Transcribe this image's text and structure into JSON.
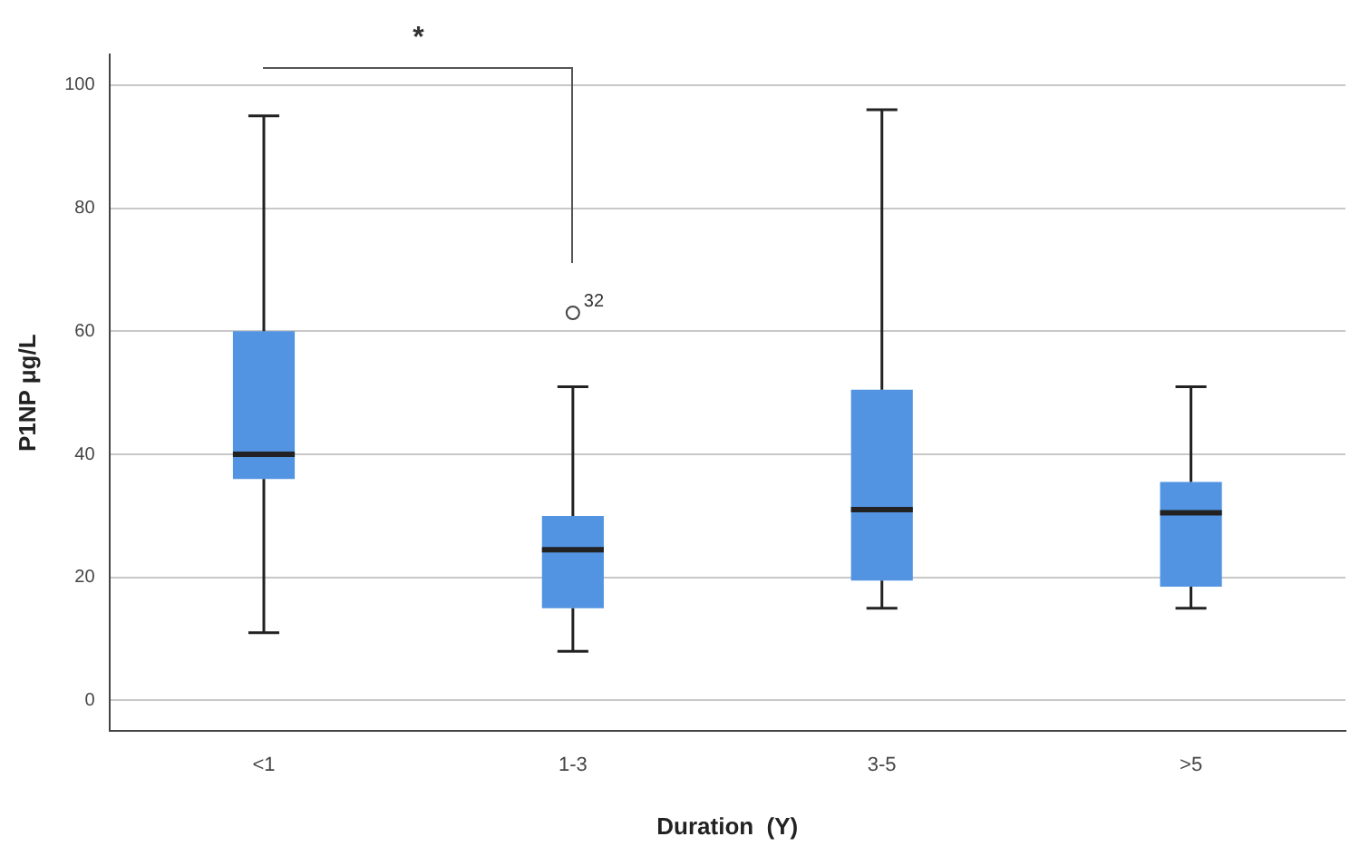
{
  "chart_data": {
    "type": "box",
    "xlabel": "Duration  (Y)",
    "ylabel": "P1NP μg/L",
    "categories": [
      "<1",
      "1-3",
      "3-5",
      ">5"
    ],
    "color": "#5294e2",
    "boxes": [
      {
        "low": 11,
        "q1": 36,
        "median": 40,
        "q3": 60,
        "high": 95
      },
      {
        "low": 8,
        "q1": 15,
        "median": 24.5,
        "q3": 30,
        "high": 51,
        "outliers": [
          63
        ]
      },
      {
        "low": 15,
        "q1": 19.5,
        "median": 31,
        "q3": 50.5,
        "high": 96
      },
      {
        "low": 15,
        "q1": 18.5,
        "median": 30.5,
        "q3": 35.5,
        "high": 51
      }
    ],
    "ylim": [
      -5,
      105
    ],
    "yticks": [
      0,
      20,
      40,
      60,
      80,
      100
    ],
    "grid": "y",
    "legend": false,
    "annotations": [
      "*",
      "32"
    ]
  }
}
